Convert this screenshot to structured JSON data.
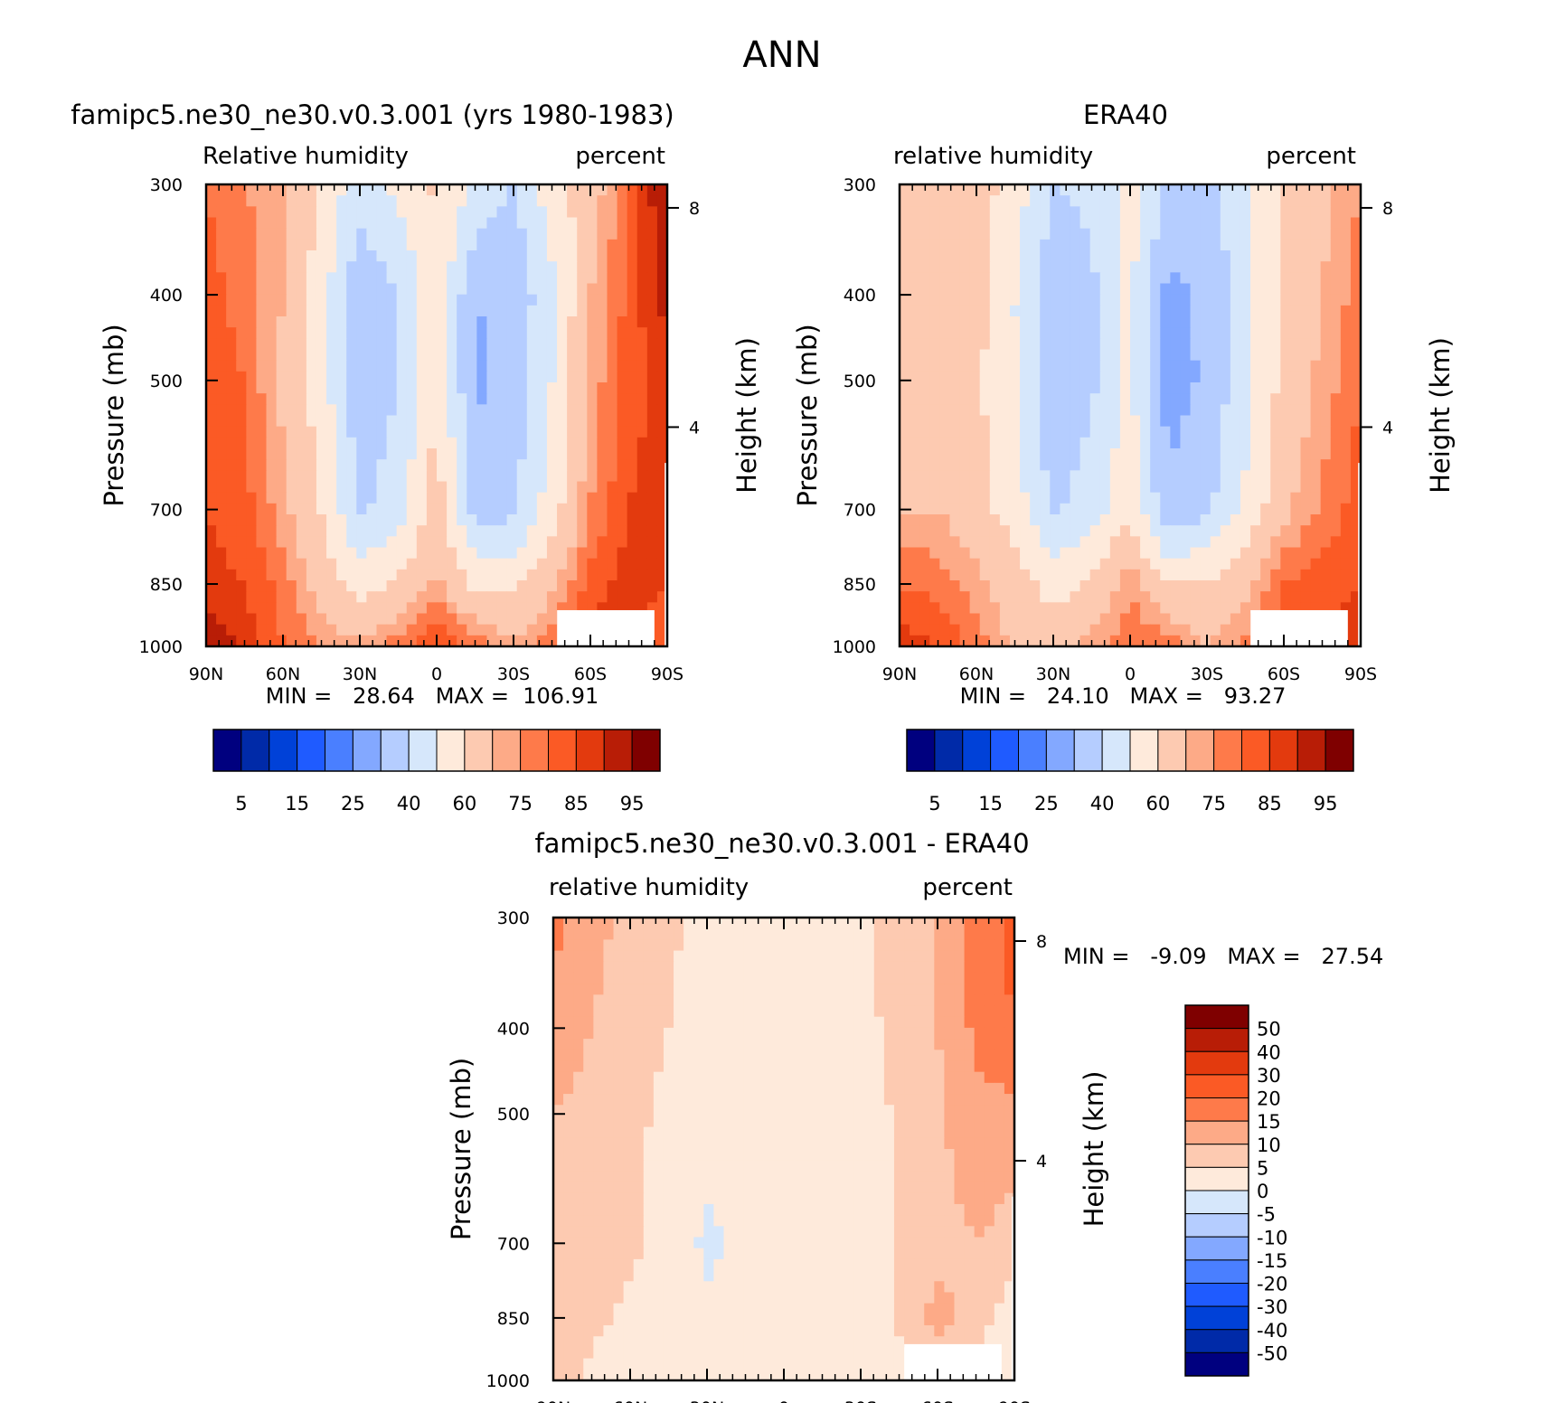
{
  "title": "ANN",
  "panel_a": {
    "title": "famipc5.ne30_ne30.v0.3.001 (yrs 1980-1983)",
    "left_label": "Relative humidity",
    "right_label": "percent",
    "stats": "MIN =   28.64   MAX =  106.91"
  },
  "panel_b": {
    "title": "ERA40",
    "left_label": "relative humidity",
    "right_label": "percent",
    "stats": "MIN =   24.10   MAX =   93.27"
  },
  "panel_c": {
    "title": "famipc5.ne30_ne30.v0.3.001 - ERA40",
    "left_label": "relative humidity",
    "right_label": "percent",
    "stats": "MIN =   -9.09   MAX =   27.54"
  },
  "axes": {
    "ylabel": "Pressure (mb)",
    "y2label": "Height (km)",
    "y_ticks": [
      "300",
      "400",
      "500",
      "700",
      "850",
      "1000"
    ],
    "y2_ticks": [
      "8",
      "4"
    ],
    "x_ticks": [
      "90N",
      "60N",
      "30N",
      "0",
      "30S",
      "60S",
      "90S"
    ]
  },
  "colorbar_abs": {
    "labels": [
      "5",
      "15",
      "25",
      "40",
      "60",
      "75",
      "85",
      "95"
    ],
    "colors": [
      "#00007f",
      "#002aa8",
      "#0041d8",
      "#1f5bff",
      "#4a7fff",
      "#83a8ff",
      "#b5cdff",
      "#d6e7fb",
      "#feeadb",
      "#fdcab1",
      "#fdaa87",
      "#fe7a4a",
      "#fb5a25",
      "#e33a0e",
      "#b81d06",
      "#7f0000"
    ]
  },
  "colorbar_diff": {
    "labels": [
      "50",
      "40",
      "30",
      "20",
      "15",
      "10",
      "5",
      "0",
      "-5",
      "-10",
      "-15",
      "-20",
      "-30",
      "-40",
      "-50"
    ],
    "colors": [
      "#7f0000",
      "#b81d06",
      "#e33a0e",
      "#fb5a25",
      "#fe7a4a",
      "#fdaa87",
      "#fdcab1",
      "#feeadb",
      "#d6e7fb",
      "#b5cdff",
      "#83a8ff",
      "#4a7fff",
      "#1f5bff",
      "#0041d8",
      "#002aa8",
      "#00007f"
    ]
  },
  "chart_data": [
    {
      "type": "heatmap",
      "title": "famipc5.ne30_ne30.v0.3.001 (yrs 1980-1983)",
      "variable": "Relative humidity",
      "units": "percent",
      "xlabel": "",
      "ylabel": "Pressure (mb)",
      "x": [
        "90N",
        "60N",
        "30N",
        "0",
        "30S",
        "60S",
        "90S"
      ],
      "x_values": [
        90,
        75,
        60,
        45,
        30,
        15,
        0,
        -15,
        -30,
        -45,
        -60,
        -75,
        -90
      ],
      "y_values": [
        300,
        400,
        500,
        700,
        850,
        1000
      ],
      "z": [
        [
          80,
          75,
          72,
          58,
          45,
          52,
          62,
          48,
          40,
          55,
          65,
          80,
          97
        ],
        [
          82,
          78,
          70,
          55,
          32,
          40,
          58,
          30,
          32,
          48,
          70,
          82,
          92
        ],
        [
          83,
          80,
          68,
          55,
          33,
          40,
          60,
          28,
          34,
          50,
          72,
          82,
          88
        ],
        [
          85,
          82,
          72,
          60,
          38,
          45,
          65,
          35,
          38,
          55,
          75,
          85,
          88
        ],
        [
          87,
          85,
          78,
          65,
          55,
          62,
          72,
          58,
          58,
          68,
          82,
          88,
          85
        ],
        [
          95,
          88,
          80,
          75,
          72,
          78,
          85,
          78,
          72,
          78,
          88,
          85,
          80
        ]
      ],
      "min": 28.64,
      "max": 106.91
    },
    {
      "type": "heatmap",
      "title": "ERA40",
      "variable": "relative humidity",
      "units": "percent",
      "xlabel": "",
      "ylabel": "Pressure (mb)",
      "x": [
        "90N",
        "60N",
        "30N",
        "0",
        "30S",
        "60S",
        "90S"
      ],
      "x_values": [
        90,
        75,
        60,
        45,
        30,
        15,
        0,
        -15,
        -30,
        -45,
        -60,
        -75,
        -90
      ],
      "y_values": [
        300,
        400,
        500,
        700,
        850,
        1000
      ],
      "z": [
        [
          60,
          65,
          65,
          55,
          40,
          42,
          55,
          38,
          35,
          50,
          62,
          68,
          75
        ],
        [
          62,
          66,
          64,
          50,
          33,
          38,
          52,
          27,
          32,
          46,
          62,
          70,
          78
        ],
        [
          64,
          67,
          62,
          50,
          33,
          38,
          52,
          25,
          32,
          46,
          63,
          72,
          80
        ],
        [
          70,
          70,
          64,
          55,
          38,
          45,
          58,
          32,
          38,
          52,
          68,
          76,
          83
        ],
        [
          80,
          78,
          72,
          65,
          55,
          62,
          74,
          60,
          60,
          68,
          80,
          83,
          85
        ],
        [
          88,
          85,
          78,
          68,
          68,
          72,
          80,
          78,
          70,
          76,
          86,
          84,
          90
        ]
      ],
      "min": 24.1,
      "max": 93.27
    },
    {
      "type": "heatmap",
      "title": "famipc5.ne30_ne30.v0.3.001 - ERA40",
      "variable": "relative humidity",
      "units": "percent",
      "xlabel": "",
      "ylabel": "Pressure (mb)",
      "x": [
        "90N",
        "60N",
        "30N",
        "0",
        "30S",
        "60S",
        "90S"
      ],
      "x_values": [
        90,
        75,
        60,
        45,
        30,
        15,
        0,
        -15,
        -30,
        -45,
        -60,
        -75,
        -90
      ],
      "y_values": [
        300,
        400,
        500,
        700,
        850,
        1000
      ],
      "z": [
        [
          17,
          12,
          8,
          6,
          3,
          2,
          1,
          3,
          4,
          8,
          10,
          17,
          22
        ],
        [
          12,
          10,
          7,
          5,
          3,
          1,
          1,
          2,
          3,
          7,
          10,
          16,
          20
        ],
        [
          10,
          9,
          6,
          4,
          2,
          4,
          5,
          3,
          2,
          6,
          9,
          14,
          13
        ],
        [
          9,
          8,
          6,
          3,
          -1,
          1,
          3,
          2,
          3,
          5,
          8,
          10,
          8
        ],
        [
          7,
          6,
          4,
          2,
          1,
          3,
          3,
          3,
          2,
          6,
          12,
          8,
          1
        ],
        [
          8,
          4,
          3,
          4,
          3,
          5,
          2,
          1,
          3,
          2,
          4,
          3,
          2
        ]
      ],
      "min": -9.09,
      "max": 27.54
    }
  ]
}
